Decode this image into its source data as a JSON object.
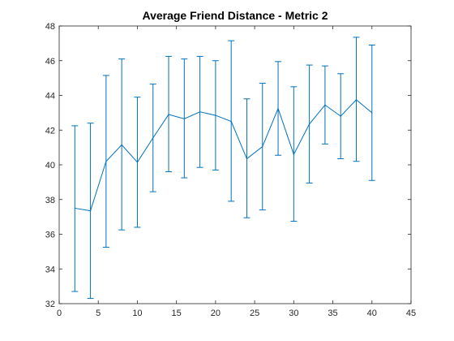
{
  "chart_data": {
    "type": "line",
    "title": "Average Friend Distance - Metric 2",
    "xlabel": "",
    "ylabel": "",
    "xlim": [
      0,
      45
    ],
    "ylim": [
      32,
      48
    ],
    "xticks": [
      0,
      5,
      10,
      15,
      20,
      25,
      30,
      35,
      40,
      45
    ],
    "yticks": [
      32,
      34,
      36,
      38,
      40,
      42,
      44,
      46,
      48
    ],
    "grid": false,
    "series_color": "#0072BD",
    "series": [
      {
        "x": [
          2,
          4,
          6,
          8,
          10,
          12,
          14,
          16,
          18,
          20,
          22,
          24,
          26,
          28,
          30,
          32,
          34,
          36,
          38,
          40
        ],
        "y": [
          37.5,
          37.35,
          40.2,
          41.15,
          40.15,
          41.55,
          42.9,
          42.65,
          43.05,
          42.85,
          42.5,
          40.35,
          41.05,
          43.25,
          40.6,
          42.35,
          43.45,
          42.8,
          43.75,
          43.0
        ],
        "err_lower": [
          32.7,
          32.3,
          35.25,
          36.25,
          36.4,
          38.45,
          39.6,
          39.25,
          39.85,
          39.7,
          37.9,
          36.95,
          37.4,
          40.55,
          36.75,
          38.95,
          41.2,
          40.35,
          40.2,
          39.1
        ],
        "err_upper": [
          42.25,
          42.4,
          45.15,
          46.1,
          43.9,
          44.65,
          46.25,
          46.1,
          46.25,
          46.0,
          47.15,
          43.8,
          44.7,
          45.95,
          44.5,
          45.75,
          45.7,
          45.25,
          47.35,
          46.9
        ]
      }
    ]
  }
}
